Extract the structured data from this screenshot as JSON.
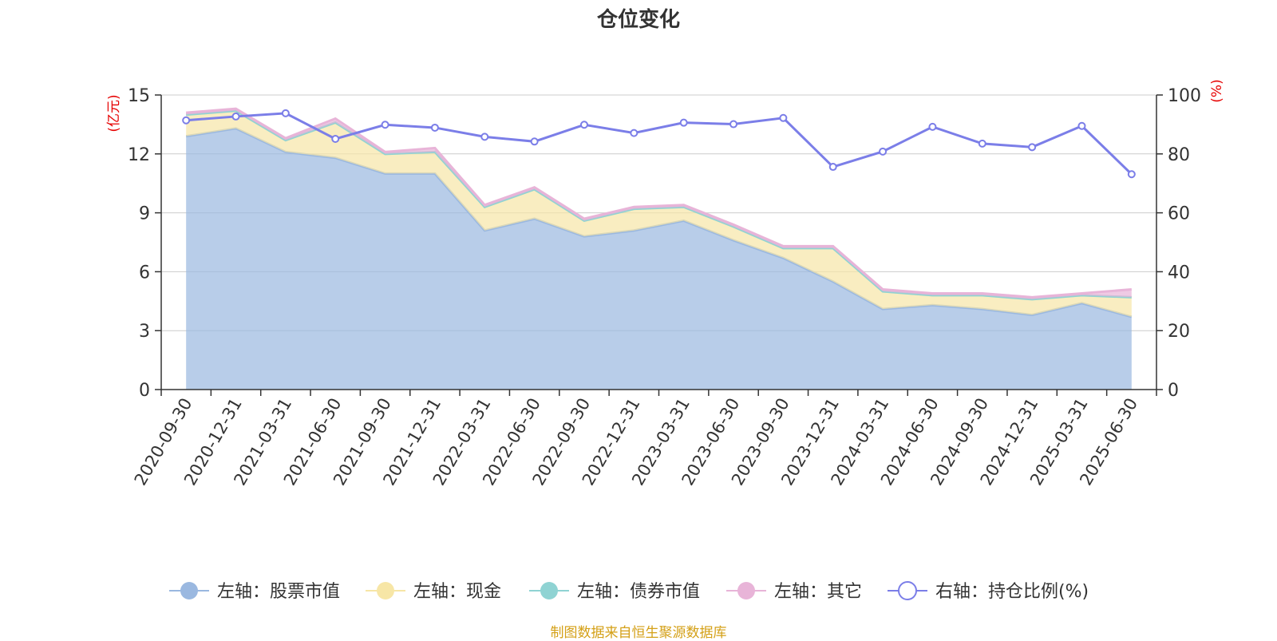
{
  "chart_data": {
    "type": "area",
    "title": "仓位变化",
    "left_axis_unit": "(亿元)",
    "right_axis_unit": "(%)",
    "left_ylim": [
      0,
      15
    ],
    "left_ticks": [
      0,
      3,
      6,
      9,
      12,
      15
    ],
    "right_ylim": [
      0,
      100
    ],
    "right_ticks": [
      0,
      20,
      40,
      60,
      80,
      100
    ],
    "grid": true,
    "legend_position": "bottom",
    "categories": [
      "2020-09-30",
      "2020-12-31",
      "2021-03-31",
      "2021-06-30",
      "2021-09-30",
      "2021-12-31",
      "2022-03-31",
      "2022-06-30",
      "2022-09-30",
      "2022-12-31",
      "2023-03-31",
      "2023-06-30",
      "2023-09-30",
      "2023-12-31",
      "2024-03-31",
      "2024-06-30",
      "2024-09-30",
      "2024-12-31",
      "2025-03-31",
      "2025-06-30"
    ],
    "series": [
      {
        "name": "左轴：股票市值",
        "axis": "left",
        "kind": "area",
        "color": "#9ab8e0",
        "values": [
          12.9,
          13.3,
          12.1,
          11.8,
          11.0,
          11.0,
          8.1,
          8.7,
          7.8,
          8.1,
          8.6,
          7.6,
          6.7,
          5.5,
          4.1,
          4.3,
          4.1,
          3.8,
          4.4,
          3.7
        ]
      },
      {
        "name": "左轴：现金",
        "axis": "left",
        "kind": "area",
        "color": "#f7e6a6",
        "values": [
          1.1,
          0.9,
          0.6,
          1.8,
          1.0,
          1.1,
          1.2,
          1.5,
          0.8,
          1.1,
          0.7,
          0.7,
          0.5,
          1.7,
          0.9,
          0.5,
          0.7,
          0.8,
          0.4,
          1.0
        ]
      },
      {
        "name": "左轴：债券市值",
        "axis": "left",
        "kind": "area",
        "color": "#8fd3d3",
        "values": [
          0,
          0,
          0,
          0,
          0,
          0,
          0,
          0,
          0,
          0,
          0,
          0,
          0,
          0,
          0,
          0,
          0,
          0,
          0,
          0
        ]
      },
      {
        "name": "左轴：其它",
        "axis": "left",
        "kind": "area",
        "color": "#e8b4d8",
        "values": [
          0.1,
          0.1,
          0.1,
          0.2,
          0.1,
          0.2,
          0.1,
          0.1,
          0.1,
          0.1,
          0.1,
          0.1,
          0.1,
          0.1,
          0.1,
          0.1,
          0.1,
          0.1,
          0.1,
          0.4
        ]
      },
      {
        "name": "右轴：持仓比例(%)",
        "axis": "right",
        "kind": "line",
        "color": "#7b7ee8",
        "values": [
          91.4,
          92.7,
          93.8,
          85.1,
          89.9,
          88.9,
          85.8,
          84.2,
          89.9,
          87.1,
          90.6,
          90.1,
          92.2,
          75.6,
          80.8,
          89.2,
          83.5,
          82.3,
          89.5,
          73.1
        ]
      }
    ],
    "source_note": "制图数据来自恒生聚源数据库"
  }
}
